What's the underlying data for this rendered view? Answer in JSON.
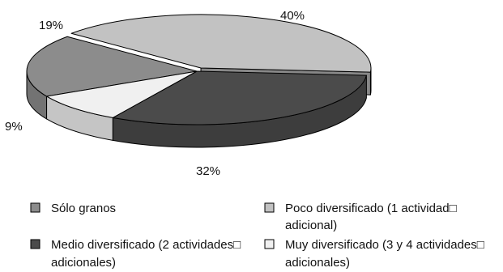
{
  "chart_data": {
    "type": "pie",
    "variant": "3d-exploded-ellipse",
    "title": "",
    "categories": [
      "Sólo granos",
      "Poco diversificado (1 actividad adicional)",
      "Medio diversificado (2 actividades adicionales)",
      "Muy diversificado (3 y 4 actividades adicionales)"
    ],
    "values": [
      19,
      40,
      32,
      9
    ],
    "value_labels": [
      "19%",
      "40%",
      "32%",
      "9%"
    ],
    "colors": [
      "#8c8c8c",
      "#c2c2c2",
      "#4b4b4b",
      "#f0f0f0"
    ],
    "legend": {
      "placement": "bottom",
      "entries": [
        {
          "lines": [
            "Sólo granos"
          ],
          "color": "#8c8c8c"
        },
        {
          "lines": [
            "Poco diversificado (1 actividad□",
            "adicional)"
          ],
          "color": "#c2c2c2"
        },
        {
          "lines": [
            "Medio diversificado (2 actividades□",
            "adicionales)"
          ],
          "color": "#4b4b4b"
        },
        {
          "lines": [
            "Muy diversificado (3 y 4 actividades□",
            "adicionales)"
          ],
          "color": "#f0f0f0"
        }
      ]
    }
  }
}
